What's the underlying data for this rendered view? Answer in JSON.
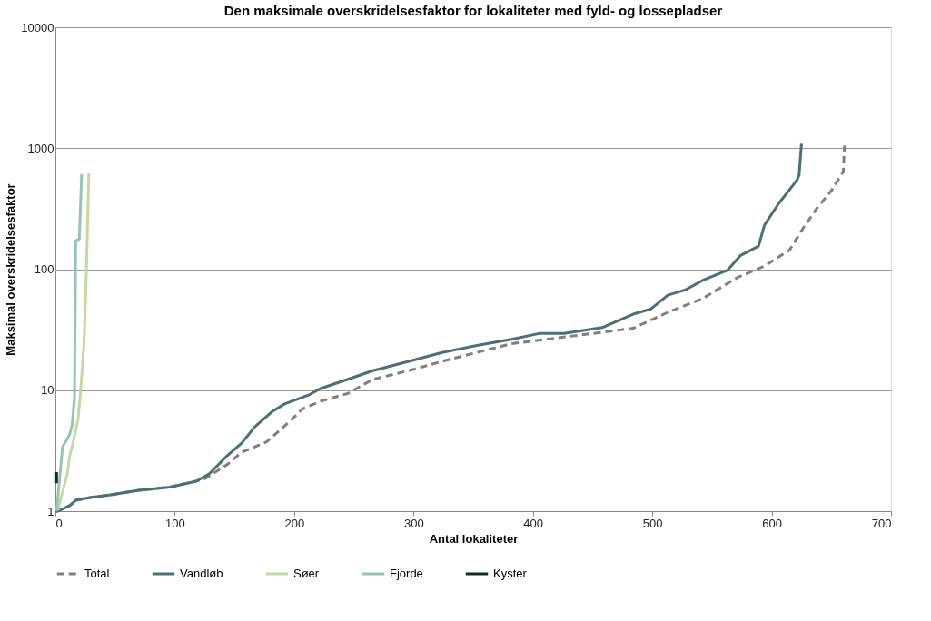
{
  "chart_data": {
    "type": "line",
    "title": "Den maksimale  overskridelsesfaktor for lokaliteter med  fyld- og lossepladser",
    "xlabel": "Antal lokaliteter",
    "ylabel": "Maksimal  overskridelsesfaktor",
    "log": true,
    "grid": "y",
    "legend": "bottom",
    "marker": "none",
    "xlim": [
      0,
      700
    ],
    "xticks": [
      0,
      100,
      200,
      300,
      400,
      500,
      600,
      700
    ],
    "ylim": [
      1,
      10000
    ],
    "yticks": [
      1,
      10,
      100,
      1000,
      10000
    ],
    "series": [
      {
        "name": "Total",
        "color": "#808080",
        "line_style": "dashed",
        "x": [
          0,
          2,
          12,
          17,
          30,
          45,
          70,
          96,
          118,
          126,
          144,
          156,
          177,
          197,
          207,
          222,
          245,
          266,
          296,
          324,
          353,
          382,
          426,
          455,
          484,
          513,
          542,
          571,
          594,
          615,
          626,
          638,
          650,
          660,
          661
        ],
        "values": [
          1,
          1,
          1.11,
          1.23,
          1.3,
          1.36,
          1.49,
          1.58,
          1.77,
          1.87,
          2.43,
          3.07,
          3.74,
          5.6,
          7,
          8.1,
          9.4,
          12.3,
          14.5,
          17.3,
          20.5,
          24.2,
          27.5,
          29.8,
          32.5,
          44,
          57,
          85,
          106,
          144,
          215,
          320,
          445,
          640,
          1050
        ]
      },
      {
        "name": "Vandløb",
        "color": "#4a7078",
        "line_style": "solid",
        "x": [
          0,
          2,
          12,
          17,
          30,
          45,
          70,
          96,
          118,
          129,
          144,
          156,
          167,
          182,
          192,
          212,
          222,
          245,
          266,
          296,
          324,
          353,
          382,
          406,
          426,
          458,
          484,
          499,
          513,
          528,
          542,
          563,
          574,
          589,
          594,
          606,
          621,
          623,
          625
        ],
        "values": [
          1,
          1,
          1.11,
          1.23,
          1.3,
          1.36,
          1.49,
          1.58,
          1.77,
          2.04,
          2.88,
          3.65,
          4.98,
          6.7,
          7.7,
          9.1,
          10.3,
          12.3,
          14.5,
          17.3,
          20.5,
          23.4,
          26.3,
          29.5,
          29.5,
          32.9,
          42.5,
          47,
          61,
          67.6,
          80.6,
          98,
          130,
          155,
          232,
          350,
          540,
          600,
          1090
        ]
      },
      {
        "name": "Søer",
        "color": "#c4d9a0",
        "line_style": "solid",
        "x": [
          2,
          10,
          12,
          14,
          19,
          21,
          24,
          26,
          28
        ],
        "values": [
          1.02,
          2.04,
          2.88,
          3.4,
          5.75,
          9.6,
          24.5,
          98,
          630
        ]
      },
      {
        "name": "Fjorde",
        "color": "#96c4b4",
        "line_style": "solid",
        "x": [
          1,
          6,
          12,
          14,
          16,
          17,
          20,
          22
        ],
        "values": [
          1,
          3.4,
          4.3,
          5.2,
          8.7,
          172,
          177,
          610
        ]
      },
      {
        "name": "Kyster",
        "color": "#0d3028",
        "line_style": "solid",
        "x": [
          1,
          1
        ],
        "values": [
          1.7,
          2.1
        ]
      }
    ]
  }
}
